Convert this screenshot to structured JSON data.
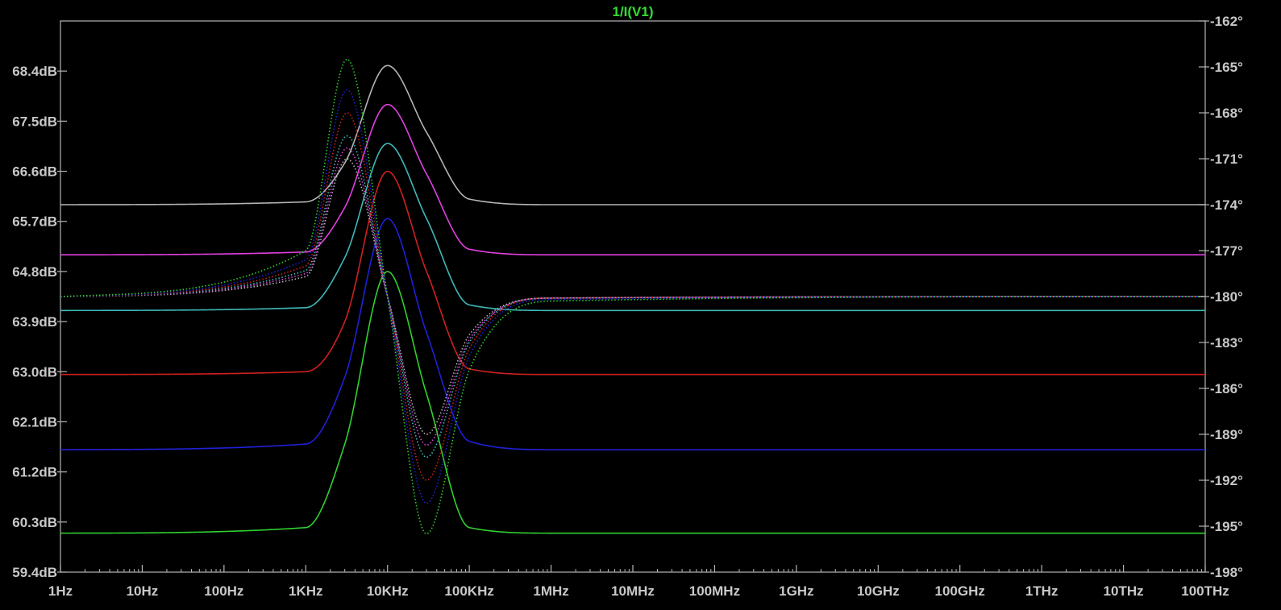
{
  "chart_data": {
    "type": "line",
    "title": "1/I(V1)",
    "x_scale": "log",
    "x_unit": "Hz",
    "xlim": [
      1,
      100000000000000
    ],
    "x_tick_labels": [
      "1Hz",
      "10Hz",
      "100Hz",
      "1KHz",
      "10KHz",
      "100KHz",
      "1MHz",
      "10MHz",
      "100MHz",
      "1GHz",
      "10GHz",
      "100GHz",
      "1THz",
      "10THz",
      "100THz"
    ],
    "y_left_label": "",
    "y_left_unit": "dB",
    "y_left_lim": [
      59.4,
      69.3
    ],
    "y_left_tick_labels": [
      "59.4dB",
      "60.3dB",
      "61.2dB",
      "62.1dB",
      "63.0dB",
      "63.9dB",
      "64.8dB",
      "65.7dB",
      "66.6dB",
      "67.5dB",
      "68.4dB"
    ],
    "y_right_lim": [
      -198,
      -162
    ],
    "y_right_tick_labels": [
      "-162°",
      "-165°",
      "-168°",
      "-171°",
      "-174°",
      "-177°",
      "-180°",
      "-183°",
      "-186°",
      "-189°",
      "-192°",
      "-195°",
      "-198°"
    ],
    "grid": false,
    "background": "#000000",
    "series": [
      {
        "color": "#b4b4b4",
        "style": "solid",
        "axis": "left",
        "x": [
          1,
          1000,
          3000,
          10000,
          30000,
          100000,
          1000000,
          100000000000000
        ],
        "values": [
          66.0,
          66.05,
          66.75,
          68.5,
          67.3,
          66.1,
          66.0,
          66.0
        ]
      },
      {
        "color": "#e040e0",
        "style": "solid",
        "axis": "left",
        "x": [
          1,
          1000,
          3000,
          10000,
          30000,
          100000,
          1000000,
          100000000000000
        ],
        "values": [
          65.1,
          65.15,
          65.95,
          67.8,
          66.55,
          65.2,
          65.1,
          65.1
        ]
      },
      {
        "color": "#40b8b8",
        "style": "solid",
        "axis": "left",
        "x": [
          1,
          1000,
          3000,
          10000,
          30000,
          100000,
          1000000,
          100000000000000
        ],
        "values": [
          64.1,
          64.15,
          65.05,
          67.1,
          65.75,
          64.2,
          64.1,
          64.1
        ]
      },
      {
        "color": "#d02020",
        "style": "solid",
        "axis": "left",
        "x": [
          1,
          1000,
          3000,
          10000,
          30000,
          100000,
          1000000,
          100000000000000
        ],
        "values": [
          62.95,
          63.0,
          63.9,
          66.6,
          64.8,
          63.05,
          62.95,
          62.95
        ]
      },
      {
        "color": "#2020d8",
        "style": "solid",
        "axis": "left",
        "x": [
          1,
          1000,
          3000,
          10000,
          30000,
          100000,
          1000000,
          100000000000000
        ],
        "values": [
          61.6,
          61.7,
          62.9,
          65.75,
          63.7,
          61.75,
          61.6,
          61.6
        ]
      },
      {
        "color": "#30d030",
        "style": "solid",
        "axis": "left",
        "x": [
          1,
          1000,
          3000,
          10000,
          30000,
          100000,
          1000000,
          100000000000000
        ],
        "values": [
          60.1,
          60.2,
          61.7,
          64.8,
          62.6,
          60.2,
          60.1,
          60.1
        ]
      },
      {
        "color": "#b4b4b4",
        "style": "dotted",
        "axis": "right",
        "x": [
          1,
          1000,
          3200,
          10000,
          30000,
          100000,
          1000000,
          100000000000000
        ],
        "values": [
          -180,
          -178.7,
          -171.0,
          -180,
          -189.0,
          -182.5,
          -180.1,
          -180
        ]
      },
      {
        "color": "#e040e0",
        "style": "dotted",
        "axis": "right",
        "x": [
          1,
          1000,
          3200,
          10000,
          30000,
          100000,
          1000000,
          100000000000000
        ],
        "values": [
          -180,
          -178.5,
          -170.3,
          -180,
          -189.7,
          -182.8,
          -180.1,
          -180
        ]
      },
      {
        "color": "#40b8b8",
        "style": "dotted",
        "axis": "right",
        "x": [
          1,
          1000,
          3200,
          10000,
          30000,
          100000,
          1000000,
          100000000000000
        ],
        "values": [
          -180,
          -178.3,
          -169.5,
          -180,
          -190.5,
          -183.0,
          -180.1,
          -180
        ]
      },
      {
        "color": "#d02020",
        "style": "dotted",
        "axis": "right",
        "x": [
          1,
          1000,
          3200,
          10000,
          30000,
          100000,
          1000000,
          100000000000000
        ],
        "values": [
          -180,
          -178.0,
          -168.0,
          -180,
          -192.0,
          -183.4,
          -180.1,
          -180
        ]
      },
      {
        "color": "#2020d8",
        "style": "dotted",
        "axis": "right",
        "x": [
          1,
          1000,
          3200,
          10000,
          30000,
          100000,
          1000000,
          100000000000000
        ],
        "values": [
          -180,
          -177.6,
          -166.5,
          -180,
          -193.5,
          -183.9,
          -180.2,
          -180
        ]
      },
      {
        "color": "#30d030",
        "style": "dotted",
        "axis": "right",
        "x": [
          1,
          1000,
          3200,
          10000,
          30000,
          100000,
          1000000,
          100000000000000
        ],
        "values": [
          -180,
          -177.0,
          -164.5,
          -180,
          -195.5,
          -184.8,
          -180.3,
          -180
        ]
      }
    ]
  }
}
